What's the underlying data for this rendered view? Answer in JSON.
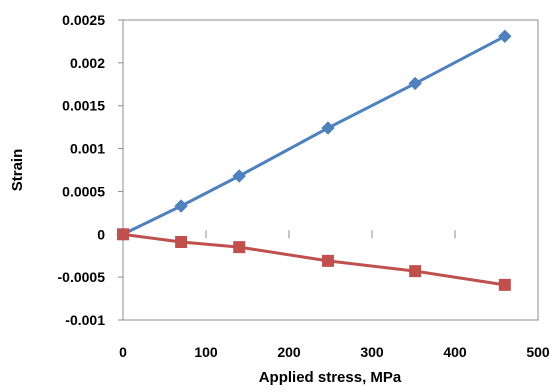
{
  "chart_data": {
    "type": "scatter",
    "title": "",
    "xlabel": "Applied stress, MPa",
    "ylabel": "Strain",
    "xlim": [
      0,
      500
    ],
    "ylim": [
      -0.001,
      0.0025
    ],
    "x_ticks": [
      0,
      100,
      200,
      300,
      400,
      500
    ],
    "y_ticks": [
      -0.001,
      -0.0005,
      0,
      0.0005,
      0.001,
      0.0015,
      0.002,
      0.0025
    ],
    "x_tick_labels": [
      "0",
      "100",
      "200",
      "300",
      "400",
      "500"
    ],
    "y_tick_labels": [
      "-0.001",
      "-0.0005",
      "0",
      "0.0005",
      "0.001",
      "0.0015",
      "0.002",
      "0.0025"
    ],
    "grid": false,
    "legend": "none",
    "lines": "straight line connecting markers",
    "series": [
      {
        "marker": "diamond",
        "color": "#4F81BD",
        "x": [
          0,
          70,
          140,
          247,
          352,
          460
        ],
        "y": [
          0,
          0.00033,
          0.00068,
          0.00124,
          0.00176,
          0.00231
        ]
      },
      {
        "marker": "square",
        "color": "#C0504D",
        "x": [
          0,
          70,
          140,
          247,
          352,
          460
        ],
        "y": [
          0,
          -9e-05,
          -0.00015,
          -0.00031,
          -0.00043,
          -0.00059
        ]
      }
    ]
  }
}
